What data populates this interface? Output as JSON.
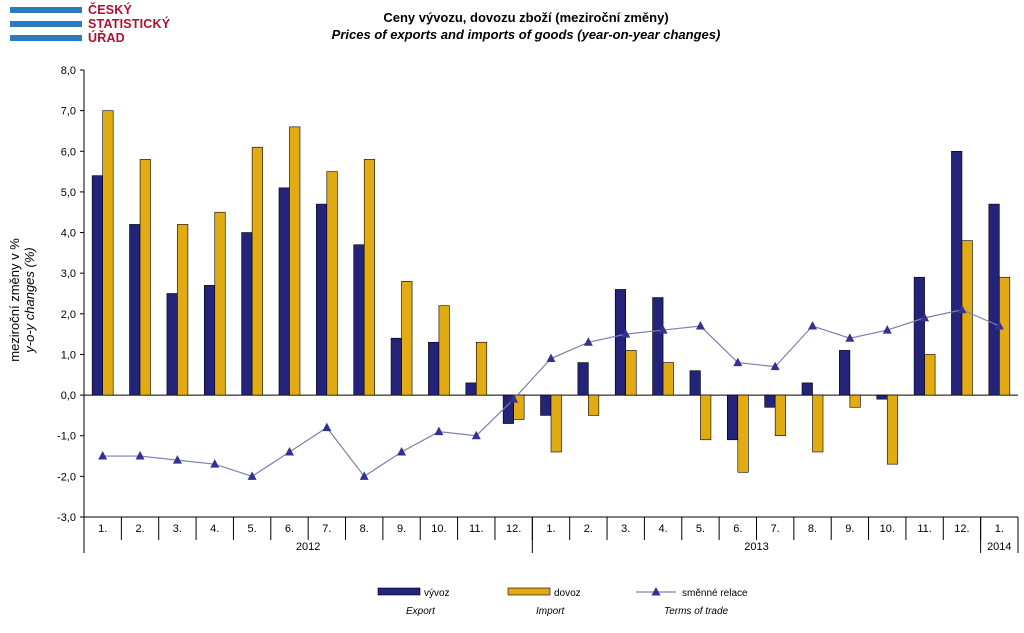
{
  "logo": {
    "lines": [
      "ČESKÝ",
      "STATISTICKÝ",
      "ÚŘAD"
    ],
    "colors": {
      "bars": "#2d7bbf",
      "text": "#b30e2f"
    }
  },
  "chart_data": {
    "type": "bar",
    "title": "Ceny vývozu, dovozu zboží (meziroční změny)",
    "subtitle": "Prices of exports and imports of goods (year-on-year changes)",
    "ylabel": "meziroční změny v %",
    "ylabel_en": "y-o-y changes (%)",
    "ylim": [
      -3.0,
      8.0
    ],
    "yticks": [
      8.0,
      7.0,
      6.0,
      5.0,
      4.0,
      3.0,
      2.0,
      1.0,
      0.0,
      -1.0,
      -2.0,
      -3.0
    ],
    "ytick_labels": [
      "8,0",
      "7,0",
      "6,0",
      "5,0",
      "4,0",
      "3,0",
      "2,0",
      "1,0",
      "0,0",
      "-1,0",
      "-2,0",
      "-3,0"
    ],
    "grid": false,
    "categories": [
      "1.",
      "2.",
      "3.",
      "4.",
      "5.",
      "6.",
      "7.",
      "8.",
      "9.",
      "10.",
      "11.",
      "12.",
      "1.",
      "2.",
      "3.",
      "4.",
      "5.",
      "6.",
      "7.",
      "8.",
      "9.",
      "10.",
      "11.",
      "12.",
      "1."
    ],
    "year_groups": [
      {
        "label": "2012",
        "start": 0,
        "count": 12
      },
      {
        "label": "2013",
        "start": 12,
        "count": 12
      },
      {
        "label": "2014",
        "start": 24,
        "count": 1
      }
    ],
    "series": [
      {
        "name": "vývoz",
        "name_en": "Export",
        "kind": "bar",
        "color": "#23237a",
        "values": [
          5.4,
          4.2,
          2.5,
          2.7,
          4.0,
          5.1,
          4.7,
          3.7,
          1.4,
          1.3,
          0.3,
          -0.7,
          -0.5,
          0.8,
          2.6,
          2.4,
          0.6,
          -1.1,
          -0.3,
          0.3,
          1.1,
          -0.1,
          2.9,
          6.0,
          4.7
        ]
      },
      {
        "name": "dovoz",
        "name_en": "Import",
        "kind": "bar",
        "color": "#e2ab14",
        "values": [
          7.0,
          5.8,
          4.2,
          4.5,
          6.1,
          6.6,
          5.5,
          5.8,
          2.8,
          2.2,
          1.3,
          -0.6,
          -1.4,
          -0.5,
          1.1,
          0.8,
          -1.1,
          -1.9,
          -1.0,
          -1.4,
          -0.3,
          -1.7,
          1.0,
          3.8,
          2.9
        ]
      },
      {
        "name": "směnné relace",
        "name_en": "Terms of trade",
        "kind": "line",
        "color": "#33338f",
        "line_color": "#7e80b0",
        "values": [
          -1.5,
          -1.5,
          -1.6,
          -1.7,
          -2.0,
          -1.4,
          -0.8,
          -2.0,
          -1.4,
          -0.9,
          -1.0,
          -0.1,
          0.9,
          1.3,
          1.5,
          1.6,
          1.7,
          0.8,
          0.7,
          1.7,
          1.4,
          1.6,
          1.9,
          2.1,
          1.7
        ]
      }
    ],
    "legend_placement": "bottom-center"
  }
}
